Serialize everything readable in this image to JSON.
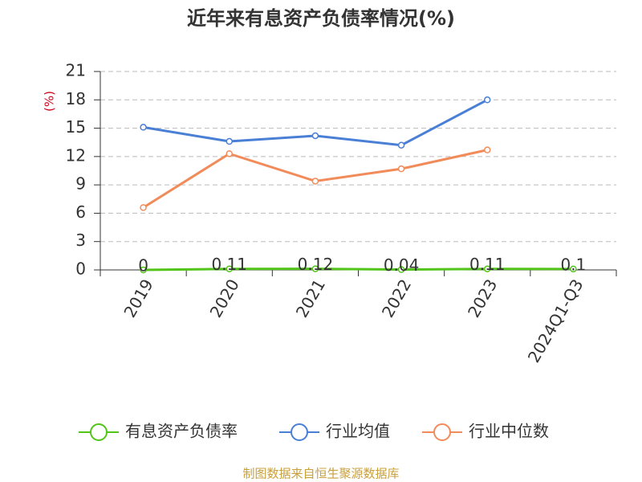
{
  "chart_data": {
    "type": "line",
    "title": "近年来有息资产负债率情况(%)",
    "y_label": "(%)",
    "categories": [
      "2019",
      "2020",
      "2021",
      "2022",
      "2023",
      "2024Q1-Q3"
    ],
    "series": [
      {
        "name": "有息资产负债率",
        "color": "#52c41a",
        "values": [
          0,
          0.11,
          0.12,
          0.04,
          0.11,
          0.1
        ]
      },
      {
        "name": "行业均值",
        "color": "#4a7fd6",
        "values": [
          15.1,
          13.6,
          14.2,
          13.2,
          18.0,
          null
        ]
      },
      {
        "name": "行业中位数",
        "color": "#f28b5a",
        "values": [
          6.6,
          12.3,
          9.4,
          10.7,
          12.7,
          null
        ]
      }
    ],
    "ylim": [
      0,
      21
    ],
    "yticks": [
      0,
      3,
      6,
      9,
      12,
      15,
      18,
      21
    ],
    "grid": true,
    "source": "制图数据来自恒生聚源数据库"
  }
}
